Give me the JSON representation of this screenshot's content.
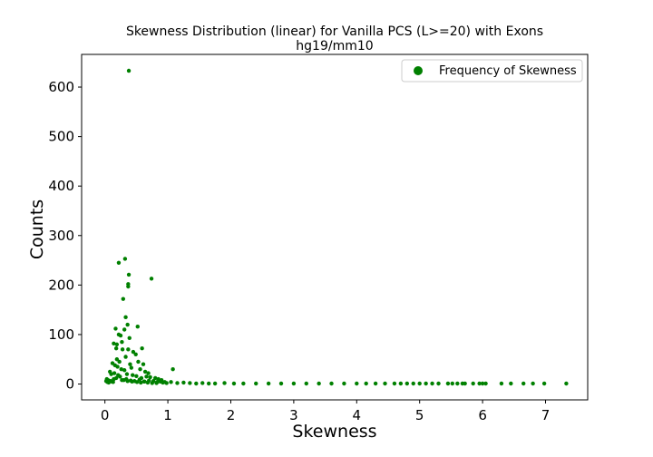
{
  "chart_data": {
    "type": "scatter",
    "title": "Skewness Distribution (linear) for Vanilla PCS (L>=20) with Exons",
    "subtitle": "hg19/mm10",
    "xlabel": "Skewness",
    "ylabel": "Counts",
    "xlim": [
      -0.37,
      7.67
    ],
    "ylim": [
      -32,
      666
    ],
    "x_ticks": [
      0,
      1,
      2,
      3,
      4,
      5,
      6,
      7
    ],
    "y_ticks": [
      0,
      100,
      200,
      300,
      400,
      500,
      600
    ],
    "grid": false,
    "legend": {
      "position": "upper right",
      "entries": [
        "Frequency of Skewness"
      ]
    },
    "color": "#008000",
    "series": [
      {
        "name": "Frequency of Skewness",
        "x": [
          0.38,
          0.32,
          0.22,
          0.38,
          0.37,
          0.37,
          0.74,
          0.29,
          0.33,
          0.36,
          0.52,
          0.31,
          0.17,
          0.22,
          0.25,
          0.27,
          0.39,
          0.14,
          0.19,
          0.18,
          0.28,
          0.37,
          0.45,
          0.49,
          0.59,
          0.19,
          0.23,
          0.33,
          0.4,
          0.61,
          0.53,
          0.12,
          0.16,
          0.2,
          0.26,
          0.31,
          0.42,
          0.56,
          0.64,
          0.69,
          0.08,
          0.1,
          0.15,
          0.21,
          0.24,
          0.35,
          0.44,
          0.5,
          0.58,
          0.66,
          0.72,
          0.8,
          0.85,
          0.9,
          0.03,
          0.05,
          0.07,
          0.09,
          0.11,
          0.13,
          0.3,
          0.34,
          0.41,
          0.47,
          0.55,
          0.62,
          0.7,
          0.77,
          0.83,
          0.88,
          0.95,
          1.08,
          0.02,
          0.04,
          0.06,
          0.14,
          0.18,
          0.27,
          0.36,
          0.43,
          0.51,
          0.57,
          0.63,
          0.68,
          0.75,
          0.82,
          0.92,
          0.98,
          1.05,
          1.15,
          1.25,
          1.35,
          1.45,
          1.55,
          1.65,
          1.75,
          1.9,
          2.05,
          2.2,
          2.4,
          2.6,
          2.8,
          3.0,
          3.2,
          3.4,
          3.6,
          3.8,
          4.0,
          4.15,
          4.3,
          4.45,
          4.6,
          4.7,
          4.8,
          4.9,
          5.0,
          5.1,
          5.2,
          5.3,
          5.45,
          5.52,
          5.6,
          5.68,
          5.72,
          5.85,
          5.95,
          6.0,
          6.05,
          6.3,
          6.45,
          6.65,
          6.8,
          6.98,
          7.33
        ],
        "y": [
          633,
          253,
          245,
          221,
          202,
          197,
          213,
          172,
          135,
          120,
          116,
          110,
          112,
          100,
          98,
          85,
          93,
          82,
          80,
          72,
          70,
          70,
          65,
          60,
          72,
          50,
          45,
          55,
          40,
          40,
          45,
          42,
          38,
          35,
          30,
          28,
          33,
          30,
          25,
          22,
          25,
          20,
          22,
          18,
          15,
          20,
          18,
          16,
          12,
          15,
          14,
          12,
          10,
          8,
          10,
          8,
          5,
          6,
          5,
          4,
          8,
          10,
          7,
          6,
          9,
          5,
          7,
          6,
          4,
          5,
          4,
          30,
          6,
          4,
          3,
          10,
          12,
          8,
          6,
          5,
          4,
          3,
          5,
          3,
          2,
          2,
          3,
          2,
          4,
          2,
          3,
          2,
          1,
          2,
          1,
          1,
          2,
          1,
          1,
          1,
          1,
          1,
          1,
          1,
          1,
          1,
          1,
          1,
          1,
          1,
          1,
          1,
          1,
          1,
          1,
          1,
          1,
          1,
          1,
          1,
          1,
          1,
          1,
          1,
          1,
          1,
          1,
          1,
          1,
          1,
          1,
          1,
          1,
          1
        ]
      }
    ]
  }
}
